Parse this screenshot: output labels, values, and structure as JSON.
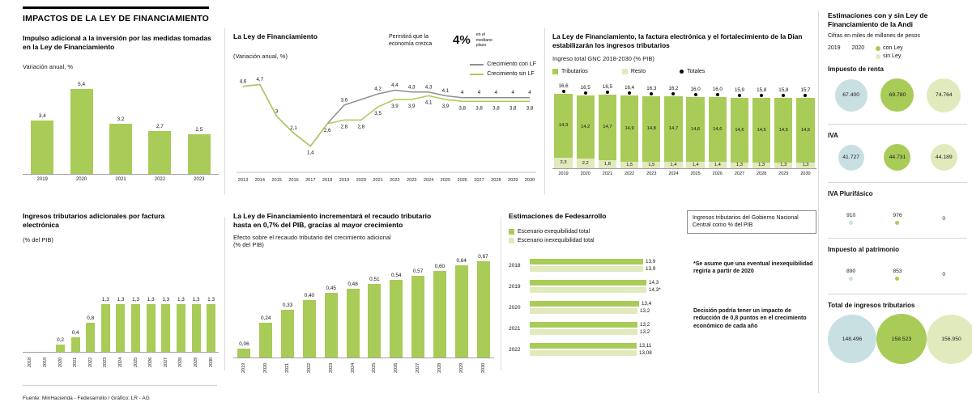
{
  "colors": {
    "green": "#a9cb58",
    "light_green": "#e0eabc",
    "blue": "#c9e0e3",
    "gray_line": "#8f8f8f",
    "axis": "#a0a0a0"
  },
  "header": {
    "title": "IMPACTOS DE LA LEY DE FINANCIAMIENTO"
  },
  "footer": {
    "source": "Fuente: MinHacienda - Fedesarrollo / Gráfico: LR - AG"
  },
  "panels": {
    "inversion": {
      "title": "Impulso adicional a la inversión por las medidas tomadas en la Ley de Financiamiento",
      "subtitle": "Variación anual, %"
    },
    "crecimiento": {
      "title": "La Ley de Financiamiento",
      "subtitle": "(Variación anual, %)",
      "callout_pre": "Permitirá que la economía crezca",
      "callout_big": "4%",
      "callout_post": "en el mediano plazo",
      "legend": [
        "Crecimiento con LF",
        "Crecimiento sin LF"
      ]
    },
    "gnc": {
      "title": "La Ley de Financiamiento, la factura electrónica y el fortalecimiento de la Dian estabilizarán los ingresos tributarios",
      "subtitle": "Ingreso total GNC 2018-2030 (% PIB)",
      "legend": [
        "Tributarios",
        "Resto",
        "Totales"
      ]
    },
    "efactura": {
      "title": "Ingresos tributarios adicionales por factura electrónica",
      "subtitle": "(% del PIB)"
    },
    "recaudo": {
      "title": "La Ley de Financiamiento incrementará el recaudo tributario hasta en 0,7% del PIB, gracias al mayor crecimiento",
      "subtitle": "Efecto sobre el recaudo tributario del crecimiento adicional (% del PIB)"
    },
    "fedesarrollo": {
      "title": "Estimaciones de Fedesarrollo",
      "legend": [
        "Escenario exequibilidad total",
        "Escenario inexequibilidad total"
      ],
      "box_note": "Ingresos tributarios del Gobierno Nacional Central como % del PIB",
      "note1": "*Se asume que una eventual inexequibilidad regiría a partir de 2020",
      "note2": "Decisión podría tener un impacto de reducción de 0,8 puntos en el crecimiento económico de cada año"
    },
    "andi": {
      "title": "Estimaciones con y sin Ley de Financiamiento de la Andi",
      "subtitle": "Cifras en miles de millones de pesos",
      "legend": {
        "y2019": "2019",
        "y2020": "2020",
        "con": "con Ley",
        "sin": "sin Ley"
      }
    }
  },
  "chart_data": [
    {
      "id": "inversion",
      "type": "bar",
      "title": "Impulso adicional a la inversión por las medidas tomadas en la Ley de Financiamiento",
      "ylabel": "Variación anual, %",
      "categories": [
        "2019",
        "2020",
        "2021",
        "2022",
        "2023"
      ],
      "values": [
        3.4,
        5.4,
        3.2,
        2.7,
        2.5
      ],
      "labels": [
        "3,4",
        "5,4",
        "3,2",
        "2,7",
        "2,5"
      ],
      "ylim": [
        0,
        6
      ]
    },
    {
      "id": "crecimiento",
      "type": "line",
      "title": "La Ley de Financiamiento",
      "subtitle": "(Variación anual, %)",
      "annotation": "Permitirá que la economía crezca 4% en el mediano plazo",
      "x": [
        "2013",
        "2014",
        "2015",
        "2016",
        "2017",
        "2018",
        "2019",
        "2020",
        "2021",
        "2022",
        "2023",
        "2024",
        "2025",
        "2026",
        "2027",
        "2028",
        "2029",
        "2030"
      ],
      "ylim": [
        0,
        5.2
      ],
      "series": [
        {
          "name": "Crecimiento con LF",
          "color": "gray_line",
          "values": [
            4.6,
            4.7,
            3.0,
            2.1,
            1.4,
            2.6,
            3.6,
            3.9,
            4.2,
            4.4,
            4.3,
            4.3,
            4.1,
            4.0,
            4.0,
            4.0,
            4.0,
            4.0
          ],
          "labels": [
            "4,6",
            "4,7",
            "3",
            "2,1",
            null,
            null,
            "3,6",
            null,
            "4,2",
            "4,4",
            "4,3",
            "4,3",
            "4,1",
            "4",
            "4",
            "4",
            "4",
            "4"
          ],
          "label_pos": "above"
        },
        {
          "name": "Crecimiento sin LF",
          "color": "green",
          "values": [
            4.6,
            4.7,
            3.0,
            2.1,
            1.4,
            2.6,
            2.8,
            2.8,
            3.5,
            3.9,
            3.9,
            4.1,
            3.9,
            3.8,
            3.8,
            3.8,
            3.8,
            3.8
          ],
          "labels": [
            null,
            null,
            null,
            null,
            "1,4",
            "2,6",
            "2,8",
            "2,8",
            "3,5",
            "3,9",
            "3,9",
            "4,1",
            "3,9",
            "3,8",
            "3,8",
            "3,8",
            "3,8",
            "3,8"
          ],
          "label_pos": "below"
        }
      ]
    },
    {
      "id": "gnc",
      "type": "bar",
      "subtype": "stacked",
      "title": "La Ley de Financiamiento, la factura electrónica y el fortalecimiento de la Dian estabilizarán los ingresos tributarios",
      "subtitle": "Ingreso total GNC 2018-2030 (% PIB)",
      "categories": [
        "2019",
        "2020",
        "2021",
        "2022",
        "2023",
        "2024",
        "2025",
        "2026",
        "2027",
        "2028",
        "2029",
        "2030"
      ],
      "series": [
        {
          "name": "Tributarios",
          "values": [
            14.3,
            14.2,
            14.7,
            14.9,
            14.8,
            14.7,
            14.6,
            14.6,
            14.6,
            14.5,
            14.5,
            14.5
          ],
          "labels": [
            "14,3",
            "14,2",
            "14,7",
            "14,9",
            "14,8",
            "14,7",
            "14,6",
            "14,6",
            "14,6",
            "14,5",
            "14,5",
            "14,5"
          ]
        },
        {
          "name": "Resto",
          "values": [
            2.3,
            2.2,
            1.8,
            1.5,
            1.5,
            1.4,
            1.4,
            1.4,
            1.3,
            1.3,
            1.3,
            1.3
          ],
          "labels": [
            "2,3",
            "2,2",
            "1,8",
            "1,5",
            "1,5",
            "1,4",
            "1,4",
            "1,4",
            "1,3",
            "1,3",
            "1,3",
            "1,3"
          ]
        }
      ],
      "totals": {
        "name": "Totales",
        "values": [
          16.6,
          16.5,
          16.5,
          16.4,
          16.3,
          16.2,
          16.0,
          16.0,
          15.9,
          15.8,
          15.8,
          15.7
        ],
        "labels": [
          "16,6",
          "16,5",
          "16,5",
          "16,4",
          "16,3",
          "16,2",
          "16,0",
          "16,0",
          "15,9",
          "15,8",
          "15,8",
          "15,7"
        ]
      }
    },
    {
      "id": "efactura",
      "type": "bar",
      "title": "Ingresos tributarios adicionales por factura electrónica",
      "ylabel": "(% del PIB)",
      "categories": [
        "2018",
        "2019",
        "2020",
        "2021",
        "2022",
        "2023",
        "2024",
        "2025",
        "2026",
        "2027",
        "2028",
        "2029",
        "2030"
      ],
      "values": [
        0,
        0,
        0.2,
        0.4,
        0.8,
        1.3,
        1.3,
        1.3,
        1.3,
        1.3,
        1.3,
        1.3,
        1.3
      ],
      "labels": [
        null,
        null,
        "0,2",
        "0,4",
        "0,8",
        "1,3",
        "1,3",
        "1,3",
        "1,3",
        "1,3",
        "1,3",
        "1,3",
        "1,3"
      ]
    },
    {
      "id": "recaudo",
      "type": "bar",
      "title": "La Ley de Financiamiento incrementará el recaudo tributario hasta en 0,7% del PIB, gracias al mayor crecimiento",
      "ylabel": "Efecto sobre el recaudo tributario del crecimiento adicional (% del PIB)",
      "categories": [
        "2019",
        "2020",
        "2021",
        "2022",
        "2023",
        "2024",
        "2025",
        "2026",
        "2027",
        "2028",
        "2029",
        "2030"
      ],
      "values": [
        0.06,
        0.24,
        0.33,
        0.4,
        0.45,
        0.48,
        0.51,
        0.54,
        0.57,
        0.6,
        0.64,
        0.67
      ],
      "labels": [
        "0,06",
        "0,24",
        "0,33",
        "0,40",
        "0,45",
        "0,48",
        "0,51",
        "0,54",
        "0,57",
        "0,60",
        "0,64",
        "0,67"
      ]
    },
    {
      "id": "fedesarrollo",
      "type": "bar",
      "subtype": "horizontal",
      "title": "Estimaciones de Fedesarrollo",
      "categories": [
        "2018",
        "2019",
        "2020",
        "2021",
        "2022"
      ],
      "series": [
        {
          "name": "Escenario exequibilidad total",
          "values": [
            13.9,
            14.3,
            13.4,
            13.2,
            13.11
          ],
          "labels": [
            "13,9",
            "14,3",
            "13,4",
            "13,2",
            "13,11"
          ]
        },
        {
          "name": "Escenario inexequibilidad total",
          "values": [
            13.9,
            14.3,
            13.2,
            13.2,
            13.08
          ],
          "labels": [
            "13,9",
            "14,3*",
            "13,2",
            "13,2",
            "13,08"
          ]
        }
      ]
    },
    {
      "id": "andi",
      "type": "scatter",
      "subtype": "bubble-table",
      "title": "Estimaciones con y sin Ley de Financiamiento de la Andi",
      "subtitle": "Cifras en miles de millones de pesos",
      "columns": [
        "2019",
        "2020 con Ley",
        "2020 sin Ley"
      ],
      "rows": [
        {
          "label": "Impuesto de renta",
          "values": [
            67400,
            69780,
            74764
          ],
          "labels": [
            "67.400",
            "69.780",
            "74.764"
          ]
        },
        {
          "label": "IVA",
          "values": [
            41727,
            44731,
            44189
          ],
          "labels": [
            "41.727",
            "44.731",
            "44.189"
          ]
        },
        {
          "label": "IVA Plurifásico",
          "values": [
            910,
            976,
            0
          ],
          "labels": [
            "910",
            "976",
            "0"
          ]
        },
        {
          "label": "Impuesto al patrimonio",
          "values": [
            890,
            853,
            0
          ],
          "labels": [
            "890",
            "853",
            "0"
          ]
        },
        {
          "label": "Total de ingresos tributarios",
          "values": [
            148496,
            158523,
            156950
          ],
          "labels": [
            "148.496",
            "158.523",
            "156.950"
          ]
        }
      ]
    }
  ]
}
